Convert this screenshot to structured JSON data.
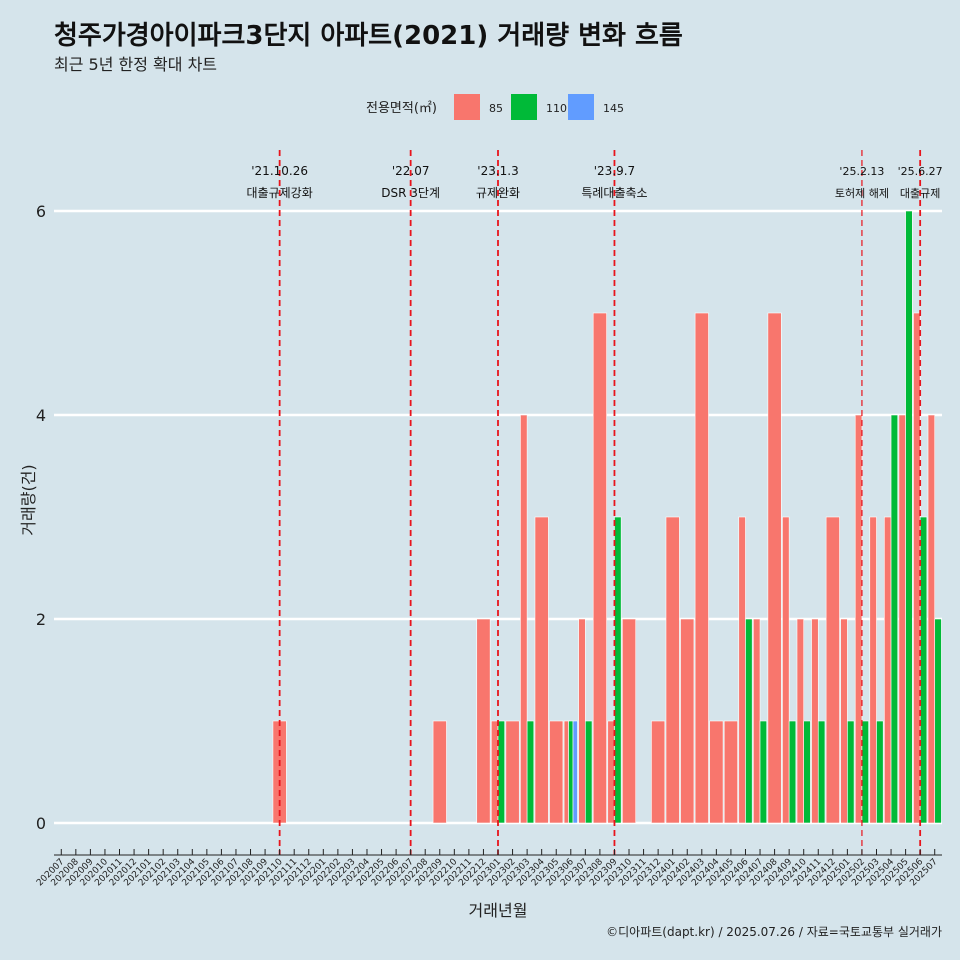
{
  "chart_data": {
    "type": "bar",
    "title": "청주가경아이파크3단지 아파트(2021) 거래량 변화 흐름",
    "subtitle": "최근 5년 한정 확대 차트",
    "xlabel": "거래년월",
    "ylabel": "거래량(건)",
    "caption": "©디아파트(dapt.kr) / 2025.07.26 / 자료=국토교통부 실거래가",
    "legend_title": "전용면적(㎡)",
    "legend_position": "top",
    "ylim": [
      -0.5,
      6.5
    ],
    "yticks": [
      0,
      2,
      4,
      6
    ],
    "grid": "horizontal",
    "categories": [
      "202007",
      "202008",
      "202009",
      "202010",
      "202011",
      "202012",
      "202101",
      "202102",
      "202103",
      "202104",
      "202105",
      "202106",
      "202107",
      "202108",
      "202109",
      "202110",
      "202111",
      "202112",
      "202201",
      "202202",
      "202203",
      "202204",
      "202205",
      "202206",
      "202207",
      "202208",
      "202209",
      "202210",
      "202211",
      "202212",
      "202301",
      "202302",
      "202303",
      "202304",
      "202305",
      "202306",
      "202307",
      "202308",
      "202309",
      "202310",
      "202311",
      "202312",
      "202401",
      "202402",
      "202403",
      "202404",
      "202405",
      "202406",
      "202407",
      "202408",
      "202409",
      "202410",
      "202411",
      "202412",
      "202501",
      "202502",
      "202503",
      "202504",
      "202505",
      "202506",
      "202507"
    ],
    "tick_labels": [
      "202007",
      "202008",
      "202009",
      "202010",
      "202011",
      "202012",
      "202101",
      "202102",
      "202103",
      "202104",
      "202105",
      "202106",
      "202107",
      "202108",
      "202109",
      "202110",
      "202111",
      "202112",
      "202201",
      "202202",
      "202203",
      "202204",
      "202205",
      "202206",
      "202207",
      "202208",
      "202209",
      "202210",
      "202211",
      "202212",
      "202301",
      "202302",
      "202303",
      "202304",
      "202305",
      "202306",
      "202307",
      "202308",
      "202309",
      "202310",
      "202311",
      "202312",
      "202401",
      "202402",
      "202403",
      "202404",
      "202405",
      "202406",
      "202407",
      "202408",
      "202409",
      "202410",
      "202411",
      "202412",
      "202501",
      "202502",
      "202503",
      "202504",
      "202505",
      "202506",
      "202507"
    ],
    "series": [
      {
        "name": "85",
        "color": "#f8766d",
        "values": [
          0,
          0,
          0,
          0,
          0,
          0,
          0,
          0,
          0,
          0,
          0,
          0,
          0,
          0,
          0,
          1,
          0,
          0,
          0,
          0,
          0,
          0,
          0,
          0,
          0,
          0,
          1,
          0,
          0,
          2,
          1,
          1,
          4,
          3,
          1,
          1,
          2,
          5,
          1,
          2,
          0,
          1,
          3,
          2,
          5,
          1,
          1,
          3,
          2,
          5,
          3,
          2,
          2,
          3,
          2,
          4,
          3,
          3,
          4,
          5,
          4
        ]
      },
      {
        "name": "110",
        "color": "#00ba38",
        "values": [
          0,
          0,
          0,
          0,
          0,
          0,
          0,
          0,
          0,
          0,
          0,
          0,
          0,
          0,
          0,
          0,
          0,
          0,
          0,
          0,
          0,
          0,
          0,
          0,
          0,
          0,
          0,
          0,
          0,
          0,
          1,
          0,
          1,
          0,
          0,
          1,
          1,
          0,
          3,
          0,
          0,
          0,
          0,
          0,
          0,
          0,
          0,
          2,
          1,
          0,
          1,
          1,
          1,
          0,
          1,
          1,
          1,
          4,
          6,
          3,
          2
        ]
      },
      {
        "name": "145",
        "color": "#619cff",
        "values": [
          0,
          0,
          0,
          0,
          0,
          0,
          0,
          0,
          0,
          0,
          0,
          0,
          0,
          0,
          0,
          0,
          0,
          0,
          0,
          0,
          0,
          0,
          0,
          0,
          0,
          0,
          0,
          0,
          0,
          0,
          0,
          0,
          0,
          0,
          0,
          1,
          0,
          0,
          0,
          0,
          0,
          0,
          0,
          0,
          0,
          0,
          0,
          0,
          0,
          0,
          0,
          0,
          0,
          0,
          0,
          0,
          0,
          0,
          0,
          0,
          0
        ]
      }
    ],
    "annotations": [
      {
        "x": "202110",
        "date": "'21.10.26",
        "label": "대출규제강화"
      },
      {
        "x": "202207",
        "date": "'22.07",
        "label": "DSR 3단계"
      },
      {
        "x": "202301",
        "date": "'23.1.3",
        "label": "규제완화"
      },
      {
        "x": "202309",
        "date": "'23.9.7",
        "label": "특례대출축소"
      },
      {
        "x": "202502",
        "date": "'25.2.13",
        "label": "토허제 해제"
      },
      {
        "x": "202506",
        "date": "'25.6.27",
        "label": "대출규제"
      }
    ]
  }
}
